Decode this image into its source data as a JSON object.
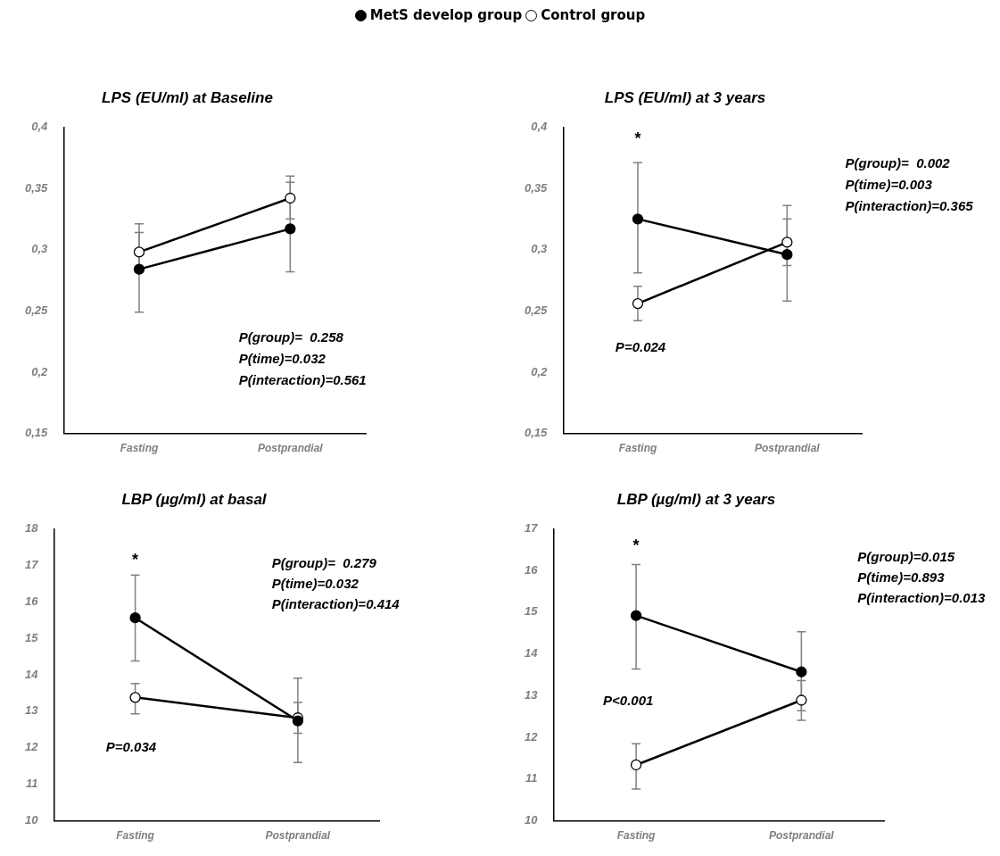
{
  "chart_data": [
    {
      "type": "line",
      "title": "LPS (EU/ml) at Baseline",
      "categories": [
        "Fasting",
        "Postprandial"
      ],
      "legend": "top",
      "marker": "circle",
      "grid": false,
      "ylim": [
        0.15,
        0.4
      ],
      "yticks": [
        {
          "value": 0.15,
          "label": "0,15"
        },
        {
          "value": 0.2,
          "label": "0,2"
        },
        {
          "value": 0.25,
          "label": "0,25"
        },
        {
          "value": 0.3,
          "label": "0,3"
        },
        {
          "value": 0.35,
          "label": "0,35"
        },
        {
          "value": 0.4,
          "label": "0,4"
        }
      ],
      "series": [
        {
          "name": "MetS develop group",
          "color": "#000000",
          "values": [
            0.284,
            0.317
          ],
          "errors": [
            [
              0.249,
              0.321
            ],
            [
              0.282,
              0.355
            ]
          ]
        },
        {
          "name": "Control group",
          "color": "#ffffff",
          "values": [
            0.298,
            0.342
          ],
          "errors": [
            [
              0.282,
              0.314
            ],
            [
              0.325,
              0.36
            ]
          ]
        }
      ],
      "annotations": [
        "P(group)=  0.258",
        "P(time)=0.032",
        "P(interaction)=0.561"
      ]
    },
    {
      "type": "line",
      "title": "LPS (EU/ml) at 3 years",
      "categories": [
        "Fasting",
        "Postprandial"
      ],
      "legend": false,
      "marker": "circle",
      "grid": false,
      "ylim": [
        0.15,
        0.4
      ],
      "yticks": [
        {
          "value": 0.15,
          "label": "0,15"
        },
        {
          "value": 0.2,
          "label": "0,2"
        },
        {
          "value": 0.25,
          "label": "0,25"
        },
        {
          "value": 0.3,
          "label": "0,3"
        },
        {
          "value": 0.35,
          "label": "0,35"
        },
        {
          "value": 0.4,
          "label": "0,4"
        }
      ],
      "series": [
        {
          "color": "#000000",
          "values": [
            0.325,
            0.296
          ],
          "errors": [
            [
              0.281,
              0.371
            ],
            [
              0.258,
              0.336
            ]
          ]
        },
        {
          "color": "#ffffff",
          "values": [
            0.256,
            0.306
          ],
          "errors": [
            [
              0.242,
              0.27
            ],
            [
              0.287,
              0.325
            ]
          ]
        }
      ],
      "annotations": [
        "*",
        "P=0.024",
        "P(group)=  0.002",
        "P(time)=0.003",
        "P(interaction)=0.365"
      ]
    },
    {
      "type": "line",
      "title": "LBP (µg/ml) at basal",
      "categories": [
        "Fasting",
        "Postprandial"
      ],
      "legend": false,
      "marker": "circle",
      "grid": false,
      "ylim": [
        10,
        18
      ],
      "yticks": [
        10,
        11,
        12,
        13,
        14,
        15,
        16,
        17,
        18
      ],
      "series": [
        {
          "color": "#000000",
          "values": [
            15.56,
            12.74
          ],
          "errors": [
            [
              14.38,
              16.73
            ],
            [
              11.6,
              13.91
            ]
          ]
        },
        {
          "color": "#ffffff",
          "values": [
            13.38,
            12.82
          ],
          "errors": [
            [
              12.93,
              13.76
            ],
            [
              12.4,
              13.24
            ]
          ]
        }
      ],
      "annotations": [
        "*",
        "P=0.034",
        "P(group)=  0.279",
        "P(time)=0.032",
        "P(interaction)=0.414"
      ]
    },
    {
      "type": "line",
      "title": "LBP (µg/ml) at 3 years",
      "categories": [
        "Fasting",
        "Postprandial"
      ],
      "legend": false,
      "marker": "circle",
      "grid": false,
      "ylim": [
        10,
        17
      ],
      "yticks": [
        10,
        11,
        12,
        13,
        14,
        15,
        16,
        17
      ],
      "series": [
        {
          "color": "#000000",
          "values": [
            14.92,
            13.57
          ],
          "errors": [
            [
              13.64,
              16.14
            ],
            [
              12.64,
              14.53
            ]
          ]
        },
        {
          "color": "#ffffff",
          "values": [
            11.34,
            12.89
          ],
          "errors": [
            [
              10.76,
              11.85
            ],
            [
              12.41,
              13.36
            ]
          ]
        }
      ],
      "annotations": [
        "*",
        "P<0.001",
        "P(group)=0.015",
        "P(time)=0.893",
        "P(interaction)=0.013"
      ]
    }
  ]
}
